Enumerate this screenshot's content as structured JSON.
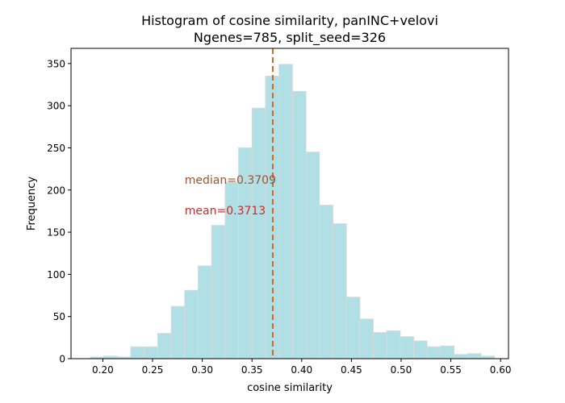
{
  "chart_data": {
    "type": "bar",
    "title_line1": "Histogram of cosine similarity, panINC+velovi",
    "title_line2": "Ngenes=785, split_seed=326",
    "xlabel": "cosine similarity",
    "ylabel": "Frequency",
    "xlim": [
      0.168,
      0.608
    ],
    "ylim": [
      0,
      368
    ],
    "xticks": [
      0.2,
      0.25,
      0.3,
      0.35,
      0.4,
      0.45,
      0.5,
      0.55,
      0.6
    ],
    "xtick_labels": [
      "0.20",
      "0.25",
      "0.30",
      "0.35",
      "0.40",
      "0.45",
      "0.50",
      "0.55",
      "0.60"
    ],
    "yticks": [
      0,
      50,
      100,
      150,
      200,
      250,
      300,
      350
    ],
    "ytick_labels": [
      "0",
      "50",
      "100",
      "150",
      "200",
      "250",
      "300",
      "350"
    ],
    "bin_width": 0.01355,
    "bins": [
      {
        "x0": 0.1875,
        "x1": 0.201,
        "count": 2
      },
      {
        "x0": 0.201,
        "x1": 0.2146,
        "count": 3
      },
      {
        "x0": 0.2146,
        "x1": 0.2281,
        "count": 2
      },
      {
        "x0": 0.2281,
        "x1": 0.2417,
        "count": 14
      },
      {
        "x0": 0.2417,
        "x1": 0.2552,
        "count": 14
      },
      {
        "x0": 0.2552,
        "x1": 0.2688,
        "count": 30
      },
      {
        "x0": 0.2688,
        "x1": 0.2823,
        "count": 62
      },
      {
        "x0": 0.2823,
        "x1": 0.2959,
        "count": 81
      },
      {
        "x0": 0.2959,
        "x1": 0.3094,
        "count": 110
      },
      {
        "x0": 0.3094,
        "x1": 0.323,
        "count": 158
      },
      {
        "x0": 0.323,
        "x1": 0.3365,
        "count": 209
      },
      {
        "x0": 0.3365,
        "x1": 0.3501,
        "count": 250
      },
      {
        "x0": 0.3501,
        "x1": 0.3636,
        "count": 297
      },
      {
        "x0": 0.3636,
        "x1": 0.3772,
        "count": 335
      },
      {
        "x0": 0.3772,
        "x1": 0.3907,
        "count": 349
      },
      {
        "x0": 0.3907,
        "x1": 0.4043,
        "count": 317
      },
      {
        "x0": 0.4043,
        "x1": 0.4178,
        "count": 245
      },
      {
        "x0": 0.4178,
        "x1": 0.4314,
        "count": 182
      },
      {
        "x0": 0.4314,
        "x1": 0.4449,
        "count": 160
      },
      {
        "x0": 0.4449,
        "x1": 0.4585,
        "count": 73
      },
      {
        "x0": 0.4585,
        "x1": 0.472,
        "count": 47
      },
      {
        "x0": 0.472,
        "x1": 0.4856,
        "count": 31
      },
      {
        "x0": 0.4856,
        "x1": 0.4991,
        "count": 33
      },
      {
        "x0": 0.4991,
        "x1": 0.5127,
        "count": 26
      },
      {
        "x0": 0.5127,
        "x1": 0.5262,
        "count": 21
      },
      {
        "x0": 0.5262,
        "x1": 0.5398,
        "count": 14
      },
      {
        "x0": 0.5398,
        "x1": 0.5533,
        "count": 15
      },
      {
        "x0": 0.5533,
        "x1": 0.5669,
        "count": 5
      },
      {
        "x0": 0.5669,
        "x1": 0.5804,
        "count": 6
      },
      {
        "x0": 0.5804,
        "x1": 0.594,
        "count": 3
      }
    ],
    "median": 0.3709,
    "mean": 0.3713,
    "median_label": "median=0.3709",
    "mean_label": "mean=0.3713",
    "bar_color": "#b0dfe5",
    "bar_edge_color": "#d9d9d9",
    "median_line_color": "#d2691e",
    "median_text_color": "#a0522d",
    "mean_text_color": "#d62728",
    "annotation_median_y": 212,
    "annotation_mean_y": 176
  }
}
